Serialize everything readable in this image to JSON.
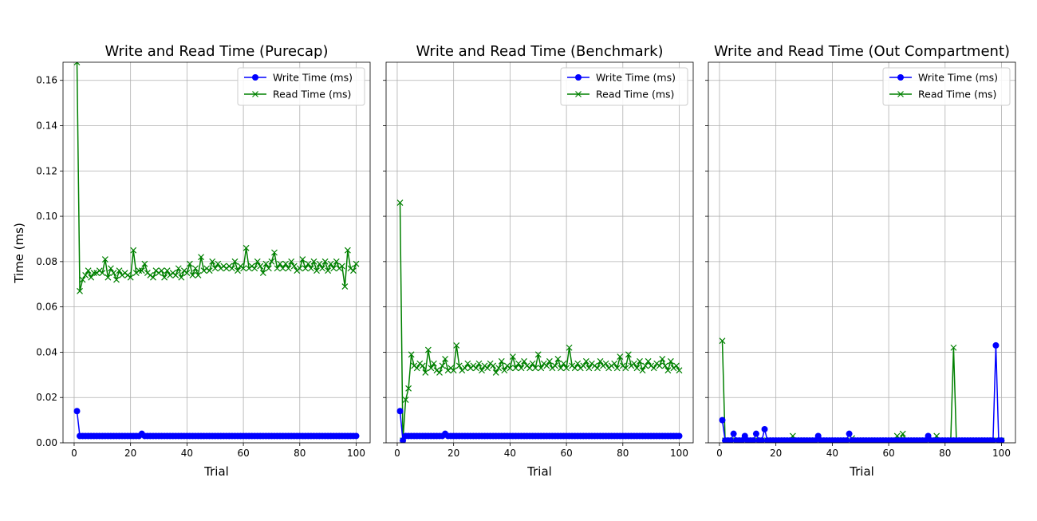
{
  "figure": {
    "ylabel": "Time (ms)"
  },
  "colors": {
    "write": "#0000ff",
    "read": "#008000",
    "grid": "#b0b0b0"
  },
  "chart_data": [
    {
      "type": "line",
      "title": "Write and Read Time (Purecap)",
      "xlabel": "Trial",
      "ylabel": "Time (ms)",
      "xlim": [
        -3.95,
        104.95
      ],
      "ylim": [
        0,
        0.168
      ],
      "xticks": [
        0,
        20,
        40,
        60,
        80,
        100
      ],
      "yticks": [
        0.0,
        0.02,
        0.04,
        0.06,
        0.08,
        0.1,
        0.12,
        0.14,
        0.16
      ],
      "ytick_labels": [
        "0.00",
        "0.02",
        "0.04",
        "0.06",
        "0.08",
        "0.10",
        "0.12",
        "0.14",
        "0.16"
      ],
      "show_yticklabels": true,
      "grid": true,
      "legend": "top-right",
      "x": [
        1,
        2,
        3,
        4,
        5,
        6,
        7,
        8,
        9,
        10,
        11,
        12,
        13,
        14,
        15,
        16,
        17,
        18,
        19,
        20,
        21,
        22,
        23,
        24,
        25,
        26,
        27,
        28,
        29,
        30,
        31,
        32,
        33,
        34,
        35,
        36,
        37,
        38,
        39,
        40,
        41,
        42,
        43,
        44,
        45,
        46,
        47,
        48,
        49,
        50,
        51,
        52,
        53,
        54,
        55,
        56,
        57,
        58,
        59,
        60,
        61,
        62,
        63,
        64,
        65,
        66,
        67,
        68,
        69,
        70,
        71,
        72,
        73,
        74,
        75,
        76,
        77,
        78,
        79,
        80,
        81,
        82,
        83,
        84,
        85,
        86,
        87,
        88,
        89,
        90,
        91,
        92,
        93,
        94,
        95,
        96,
        97,
        98,
        99,
        100
      ],
      "series": [
        {
          "name": "Write Time (ms)",
          "marker": "o",
          "values": [
            0.014,
            0.003,
            0.003,
            0.003,
            0.003,
            0.003,
            0.003,
            0.003,
            0.003,
            0.003,
            0.003,
            0.003,
            0.003,
            0.003,
            0.003,
            0.003,
            0.003,
            0.003,
            0.003,
            0.003,
            0.003,
            0.003,
            0.003,
            0.004,
            0.003,
            0.003,
            0.003,
            0.003,
            0.003,
            0.003,
            0.003,
            0.003,
            0.003,
            0.003,
            0.003,
            0.003,
            0.003,
            0.003,
            0.003,
            0.003,
            0.003,
            0.003,
            0.003,
            0.003,
            0.003,
            0.003,
            0.003,
            0.003,
            0.003,
            0.003,
            0.003,
            0.003,
            0.003,
            0.003,
            0.003,
            0.003,
            0.003,
            0.003,
            0.003,
            0.003,
            0.003,
            0.003,
            0.003,
            0.003,
            0.003,
            0.003,
            0.003,
            0.003,
            0.003,
            0.003,
            0.003,
            0.003,
            0.003,
            0.003,
            0.003,
            0.003,
            0.003,
            0.003,
            0.003,
            0.003,
            0.003,
            0.003,
            0.003,
            0.003,
            0.003,
            0.003,
            0.003,
            0.003,
            0.003,
            0.003,
            0.003,
            0.003,
            0.003,
            0.003,
            0.003,
            0.003,
            0.003,
            0.003,
            0.003,
            0.003
          ]
        },
        {
          "name": "Read Time (ms)",
          "marker": "x",
          "values": [
            0.168,
            0.067,
            0.072,
            0.074,
            0.076,
            0.073,
            0.075,
            0.075,
            0.076,
            0.075,
            0.081,
            0.073,
            0.077,
            0.075,
            0.072,
            0.076,
            0.074,
            0.075,
            0.074,
            0.073,
            0.085,
            0.075,
            0.076,
            0.076,
            0.079,
            0.075,
            0.074,
            0.073,
            0.076,
            0.075,
            0.076,
            0.073,
            0.076,
            0.074,
            0.075,
            0.074,
            0.077,
            0.073,
            0.076,
            0.075,
            0.079,
            0.074,
            0.077,
            0.074,
            0.082,
            0.076,
            0.077,
            0.076,
            0.08,
            0.077,
            0.079,
            0.077,
            0.078,
            0.077,
            0.078,
            0.077,
            0.08,
            0.076,
            0.078,
            0.077,
            0.086,
            0.077,
            0.078,
            0.077,
            0.08,
            0.078,
            0.075,
            0.079,
            0.077,
            0.08,
            0.084,
            0.077,
            0.079,
            0.077,
            0.079,
            0.077,
            0.08,
            0.078,
            0.076,
            0.077,
            0.081,
            0.077,
            0.079,
            0.077,
            0.08,
            0.076,
            0.079,
            0.077,
            0.08,
            0.076,
            0.079,
            0.077,
            0.08,
            0.077,
            0.078,
            0.069,
            0.085,
            0.077,
            0.076,
            0.079
          ]
        }
      ]
    },
    {
      "type": "line",
      "title": "Write and Read Time (Benchmark)",
      "xlabel": "Trial",
      "ylabel": "",
      "xlim": [
        -3.95,
        104.95
      ],
      "ylim": [
        0,
        0.168
      ],
      "xticks": [
        0,
        20,
        40,
        60,
        80,
        100
      ],
      "yticks": [
        0.0,
        0.02,
        0.04,
        0.06,
        0.08,
        0.1,
        0.12,
        0.14,
        0.16
      ],
      "ytick_labels": [],
      "show_yticklabels": false,
      "grid": true,
      "legend": "top-right",
      "x": [
        1,
        2,
        3,
        4,
        5,
        6,
        7,
        8,
        9,
        10,
        11,
        12,
        13,
        14,
        15,
        16,
        17,
        18,
        19,
        20,
        21,
        22,
        23,
        24,
        25,
        26,
        27,
        28,
        29,
        30,
        31,
        32,
        33,
        34,
        35,
        36,
        37,
        38,
        39,
        40,
        41,
        42,
        43,
        44,
        45,
        46,
        47,
        48,
        49,
        50,
        51,
        52,
        53,
        54,
        55,
        56,
        57,
        58,
        59,
        60,
        61,
        62,
        63,
        64,
        65,
        66,
        67,
        68,
        69,
        70,
        71,
        72,
        73,
        74,
        75,
        76,
        77,
        78,
        79,
        80,
        81,
        82,
        83,
        84,
        85,
        86,
        87,
        88,
        89,
        90,
        91,
        92,
        93,
        94,
        95,
        96,
        97,
        98,
        99,
        100
      ],
      "series": [
        {
          "name": "Write Time (ms)",
          "marker": "o",
          "values": [
            0.014,
            0.001,
            0.003,
            0.003,
            0.003,
            0.003,
            0.003,
            0.003,
            0.003,
            0.003,
            0.003,
            0.003,
            0.003,
            0.003,
            0.003,
            0.003,
            0.004,
            0.003,
            0.003,
            0.003,
            0.003,
            0.003,
            0.003,
            0.003,
            0.003,
            0.003,
            0.003,
            0.003,
            0.003,
            0.003,
            0.003,
            0.003,
            0.003,
            0.003,
            0.003,
            0.003,
            0.003,
            0.003,
            0.003,
            0.003,
            0.003,
            0.003,
            0.003,
            0.003,
            0.003,
            0.003,
            0.003,
            0.003,
            0.003,
            0.003,
            0.003,
            0.003,
            0.003,
            0.003,
            0.003,
            0.003,
            0.003,
            0.003,
            0.003,
            0.003,
            0.003,
            0.003,
            0.003,
            0.003,
            0.003,
            0.003,
            0.003,
            0.003,
            0.003,
            0.003,
            0.003,
            0.003,
            0.003,
            0.003,
            0.003,
            0.003,
            0.003,
            0.003,
            0.003,
            0.003,
            0.003,
            0.003,
            0.003,
            0.003,
            0.003,
            0.003,
            0.003,
            0.003,
            0.003,
            0.003,
            0.003,
            0.003,
            0.003,
            0.003,
            0.003,
            0.003,
            0.003,
            0.003,
            0.003,
            0.003
          ]
        },
        {
          "name": "Read Time (ms)",
          "marker": "x",
          "values": [
            0.106,
            0.001,
            0.019,
            0.024,
            0.039,
            0.034,
            0.033,
            0.035,
            0.034,
            0.031,
            0.041,
            0.033,
            0.035,
            0.032,
            0.031,
            0.034,
            0.037,
            0.032,
            0.033,
            0.032,
            0.043,
            0.034,
            0.032,
            0.033,
            0.035,
            0.033,
            0.034,
            0.033,
            0.035,
            0.032,
            0.034,
            0.033,
            0.035,
            0.034,
            0.031,
            0.033,
            0.036,
            0.032,
            0.034,
            0.033,
            0.038,
            0.033,
            0.035,
            0.033,
            0.036,
            0.034,
            0.033,
            0.035,
            0.033,
            0.039,
            0.033,
            0.035,
            0.034,
            0.036,
            0.033,
            0.034,
            0.037,
            0.033,
            0.035,
            0.033,
            0.042,
            0.034,
            0.033,
            0.035,
            0.033,
            0.034,
            0.036,
            0.033,
            0.035,
            0.034,
            0.033,
            0.036,
            0.034,
            0.035,
            0.033,
            0.034,
            0.035,
            0.033,
            0.038,
            0.034,
            0.033,
            0.039,
            0.034,
            0.035,
            0.033,
            0.036,
            0.032,
            0.034,
            0.036,
            0.034,
            0.033,
            0.035,
            0.034,
            0.037,
            0.034,
            0.032,
            0.036,
            0.033,
            0.034,
            0.032
          ]
        }
      ]
    },
    {
      "type": "line",
      "title": "Write and Read Time (Out Compartment)",
      "xlabel": "Trial",
      "ylabel": "",
      "xlim": [
        -3.95,
        104.95
      ],
      "ylim": [
        0,
        0.168
      ],
      "xticks": [
        0,
        20,
        40,
        60,
        80,
        100
      ],
      "yticks": [
        0.0,
        0.02,
        0.04,
        0.06,
        0.08,
        0.1,
        0.12,
        0.14,
        0.16
      ],
      "ytick_labels": [],
      "show_yticklabels": false,
      "grid": true,
      "legend": "top-right",
      "x": [
        1,
        2,
        3,
        4,
        5,
        6,
        7,
        8,
        9,
        10,
        11,
        12,
        13,
        14,
        15,
        16,
        17,
        18,
        19,
        20,
        21,
        22,
        23,
        24,
        25,
        26,
        27,
        28,
        29,
        30,
        31,
        32,
        33,
        34,
        35,
        36,
        37,
        38,
        39,
        40,
        41,
        42,
        43,
        44,
        45,
        46,
        47,
        48,
        49,
        50,
        51,
        52,
        53,
        54,
        55,
        56,
        57,
        58,
        59,
        60,
        61,
        62,
        63,
        64,
        65,
        66,
        67,
        68,
        69,
        70,
        71,
        72,
        73,
        74,
        75,
        76,
        77,
        78,
        79,
        80,
        81,
        82,
        83,
        84,
        85,
        86,
        87,
        88,
        89,
        90,
        91,
        92,
        93,
        94,
        95,
        96,
        97,
        98,
        99,
        100
      ],
      "series": [
        {
          "name": "Write Time (ms)",
          "marker": "o",
          "values": [
            0.01,
            0.001,
            0.001,
            0.001,
            0.004,
            0.001,
            0.001,
            0.001,
            0.003,
            0.001,
            0.001,
            0.001,
            0.004,
            0.001,
            0.001,
            0.006,
            0.001,
            0.001,
            0.001,
            0.001,
            0.001,
            0.001,
            0.001,
            0.001,
            0.001,
            0.001,
            0.001,
            0.001,
            0.001,
            0.001,
            0.001,
            0.001,
            0.001,
            0.001,
            0.003,
            0.001,
            0.001,
            0.001,
            0.001,
            0.001,
            0.001,
            0.001,
            0.001,
            0.001,
            0.001,
            0.004,
            0.001,
            0.001,
            0.001,
            0.001,
            0.001,
            0.001,
            0.001,
            0.001,
            0.001,
            0.001,
            0.001,
            0.001,
            0.001,
            0.001,
            0.001,
            0.001,
            0.001,
            0.001,
            0.001,
            0.001,
            0.001,
            0.001,
            0.001,
            0.001,
            0.001,
            0.001,
            0.001,
            0.003,
            0.001,
            0.001,
            0.001,
            0.001,
            0.001,
            0.001,
            0.001,
            0.001,
            0.001,
            0.001,
            0.001,
            0.001,
            0.001,
            0.001,
            0.001,
            0.001,
            0.001,
            0.001,
            0.001,
            0.001,
            0.001,
            0.001,
            0.001,
            0.043,
            0.001,
            0.001
          ]
        },
        {
          "name": "Read Time (ms)",
          "marker": "x",
          "values": [
            0.045,
            0.001,
            0.001,
            0.001,
            0.001,
            0.001,
            0.001,
            0.001,
            0.001,
            0.001,
            0.001,
            0.001,
            0.001,
            0.001,
            0.001,
            0.001,
            0.001,
            0.001,
            0.001,
            0.001,
            0.001,
            0.001,
            0.001,
            0.001,
            0.001,
            0.003,
            0.001,
            0.001,
            0.001,
            0.001,
            0.001,
            0.001,
            0.001,
            0.001,
            0.001,
            0.001,
            0.001,
            0.001,
            0.001,
            0.001,
            0.001,
            0.001,
            0.001,
            0.001,
            0.001,
            0.001,
            0.002,
            0.001,
            0.001,
            0.001,
            0.001,
            0.001,
            0.001,
            0.001,
            0.001,
            0.001,
            0.001,
            0.001,
            0.001,
            0.001,
            0.001,
            0.001,
            0.003,
            0.001,
            0.004,
            0.001,
            0.001,
            0.001,
            0.001,
            0.001,
            0.001,
            0.001,
            0.001,
            0.001,
            0.001,
            0.001,
            0.003,
            0.001,
            0.001,
            0.001,
            0.001,
            0.001,
            0.042,
            0.001,
            0.001,
            0.001,
            0.001,
            0.001,
            0.001,
            0.001,
            0.001,
            0.001,
            0.001,
            0.001,
            0.001,
            0.001,
            0.001,
            0.001,
            0.001,
            0.001
          ]
        }
      ]
    }
  ]
}
